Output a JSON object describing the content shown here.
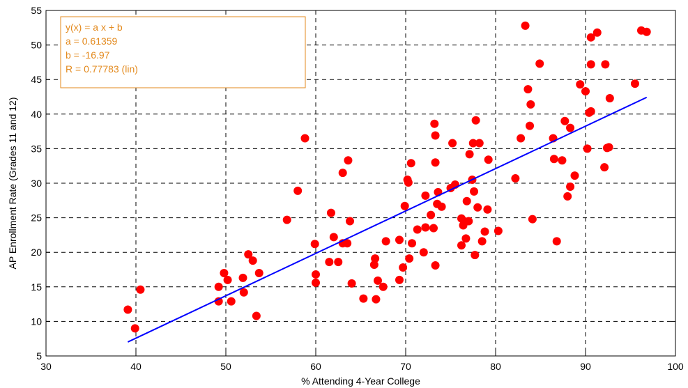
{
  "chart_data": {
    "type": "scatter",
    "title": "",
    "xlabel": "% Attending 4-Year College",
    "ylabel": "AP Enrollment Rate (Grades 11 and 12)",
    "xlim": [
      30,
      100
    ],
    "ylim": [
      5,
      55
    ],
    "xticks": [
      30,
      40,
      50,
      60,
      70,
      80,
      90,
      100
    ],
    "yticks": [
      5,
      10,
      15,
      20,
      25,
      30,
      35,
      40,
      45,
      50,
      55
    ],
    "grid": true,
    "grid_style": "dashed",
    "marker_color": "#ff0000",
    "fit_color": "#0000ff",
    "annotation_color": "#e38a1e",
    "points": [
      [
        39.1,
        11.7
      ],
      [
        39.9,
        9.0
      ],
      [
        40.5,
        14.6
      ],
      [
        49.2,
        15.0
      ],
      [
        49.2,
        12.9
      ],
      [
        49.8,
        17.0
      ],
      [
        50.2,
        16.0
      ],
      [
        50.6,
        12.9
      ],
      [
        51.9,
        16.3
      ],
      [
        52.0,
        14.2
      ],
      [
        52.5,
        19.7
      ],
      [
        53.0,
        18.8
      ],
      [
        53.4,
        10.8
      ],
      [
        53.7,
        17.0
      ],
      [
        56.8,
        24.7
      ],
      [
        58.0,
        28.9
      ],
      [
        58.8,
        36.5
      ],
      [
        59.9,
        21.2
      ],
      [
        60.0,
        16.8
      ],
      [
        60.0,
        15.6
      ],
      [
        61.5,
        18.6
      ],
      [
        61.7,
        25.7
      ],
      [
        62.0,
        22.2
      ],
      [
        62.5,
        18.6
      ],
      [
        63.0,
        21.3
      ],
      [
        63.0,
        31.5
      ],
      [
        63.5,
        21.3
      ],
      [
        63.6,
        33.3
      ],
      [
        63.8,
        24.5
      ],
      [
        64.0,
        15.5
      ],
      [
        65.3,
        13.3
      ],
      [
        66.5,
        18.2
      ],
      [
        66.6,
        19.1
      ],
      [
        66.7,
        13.2
      ],
      [
        66.9,
        15.9
      ],
      [
        67.5,
        15.0
      ],
      [
        67.8,
        21.6
      ],
      [
        69.3,
        21.8
      ],
      [
        69.3,
        16.0
      ],
      [
        69.7,
        17.8
      ],
      [
        69.9,
        26.7
      ],
      [
        70.2,
        30.5
      ],
      [
        70.3,
        30.1
      ],
      [
        70.4,
        19.1
      ],
      [
        70.6,
        32.9
      ],
      [
        70.7,
        21.3
      ],
      [
        71.3,
        23.3
      ],
      [
        72.0,
        20.0
      ],
      [
        72.2,
        23.6
      ],
      [
        72.2,
        28.2
      ],
      [
        72.8,
        25.4
      ],
      [
        73.1,
        23.5
      ],
      [
        73.2,
        38.6
      ],
      [
        73.3,
        36.9
      ],
      [
        73.3,
        33.0
      ],
      [
        73.3,
        18.1
      ],
      [
        73.5,
        27.0
      ],
      [
        73.6,
        28.7
      ],
      [
        74.0,
        26.6
      ],
      [
        75.0,
        29.3
      ],
      [
        75.2,
        35.8
      ],
      [
        75.5,
        29.8
      ],
      [
        76.2,
        24.9
      ],
      [
        76.2,
        21.0
      ],
      [
        76.4,
        23.9
      ],
      [
        76.5,
        24.5
      ],
      [
        76.7,
        22.0
      ],
      [
        76.8,
        27.4
      ],
      [
        77.0,
        24.5
      ],
      [
        77.1,
        34.2
      ],
      [
        77.4,
        30.5
      ],
      [
        77.6,
        28.8
      ],
      [
        77.5,
        35.8
      ],
      [
        77.7,
        19.6
      ],
      [
        77.8,
        39.1
      ],
      [
        78.0,
        26.5
      ],
      [
        78.2,
        35.8
      ],
      [
        78.5,
        21.6
      ],
      [
        78.8,
        23.0
      ],
      [
        79.1,
        26.2
      ],
      [
        79.2,
        33.4
      ],
      [
        80.3,
        23.1
      ],
      [
        82.2,
        30.7
      ],
      [
        82.8,
        36.5
      ],
      [
        83.3,
        52.8
      ],
      [
        83.6,
        43.6
      ],
      [
        83.8,
        38.3
      ],
      [
        83.9,
        41.4
      ],
      [
        84.1,
        24.8
      ],
      [
        84.9,
        47.3
      ],
      [
        86.4,
        36.5
      ],
      [
        86.5,
        33.5
      ],
      [
        86.8,
        21.6
      ],
      [
        87.4,
        33.3
      ],
      [
        87.7,
        39.0
      ],
      [
        88.0,
        28.1
      ],
      [
        88.3,
        29.5
      ],
      [
        88.3,
        38.0
      ],
      [
        88.8,
        31.1
      ],
      [
        89.4,
        44.3
      ],
      [
        90.0,
        43.3
      ],
      [
        90.2,
        35.0
      ],
      [
        90.4,
        40.2
      ],
      [
        90.6,
        40.4
      ],
      [
        90.6,
        47.2
      ],
      [
        90.6,
        51.1
      ],
      [
        91.3,
        51.8
      ],
      [
        92.1,
        32.3
      ],
      [
        92.2,
        47.2
      ],
      [
        92.4,
        35.1
      ],
      [
        92.6,
        35.2
      ],
      [
        92.7,
        42.3
      ],
      [
        95.5,
        44.4
      ],
      [
        96.2,
        52.1
      ],
      [
        96.8,
        51.9
      ]
    ],
    "fit": {
      "x_range": [
        39.1,
        96.8
      ],
      "a": 0.61359,
      "b": -16.97
    },
    "annotation": {
      "lines": [
        "y(x) = a x + b",
        "a = 0.61359",
        "b = -16.97",
        "R = 0.77783  (lin)"
      ]
    }
  }
}
